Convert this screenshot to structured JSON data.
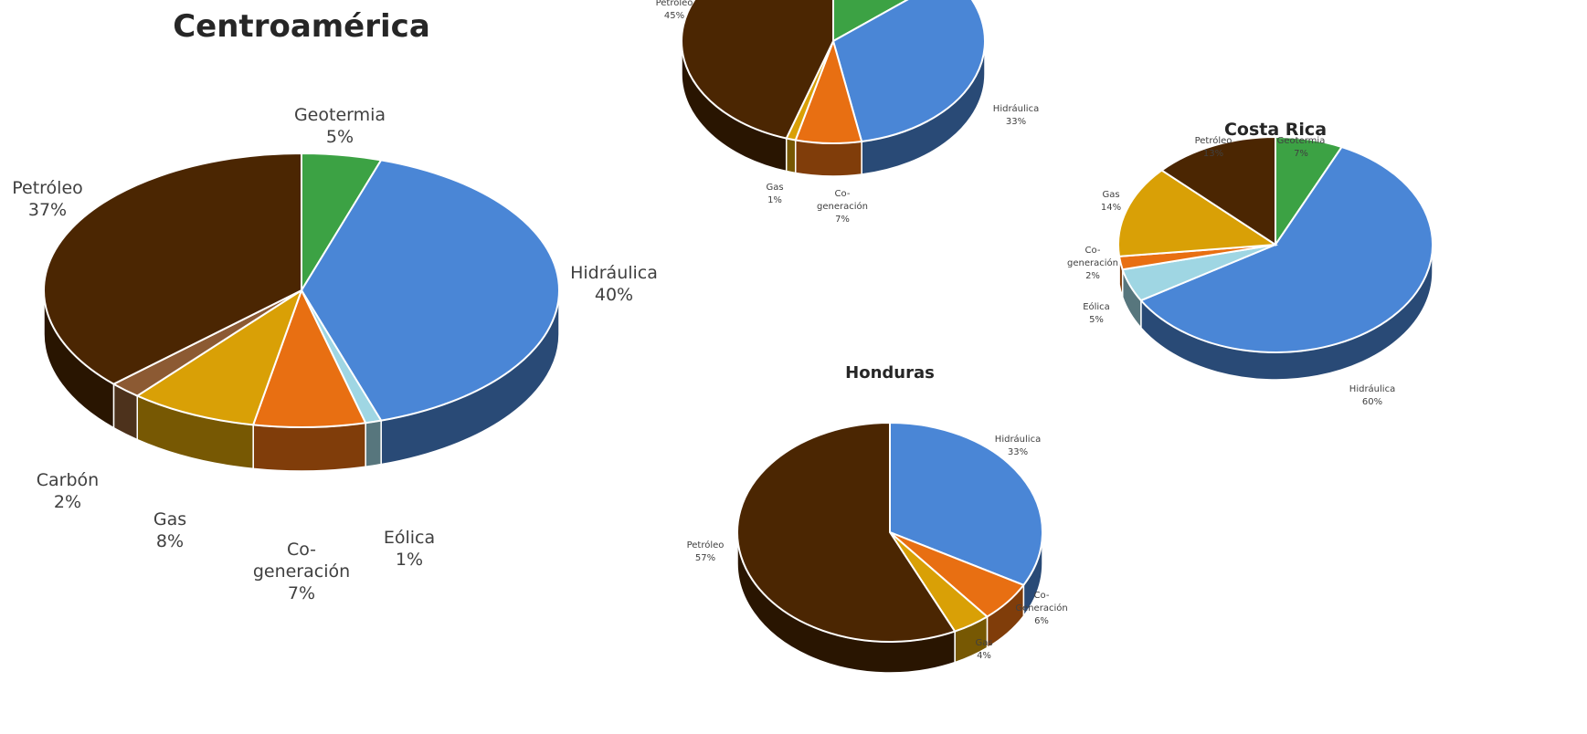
{
  "colors": {
    "Geotermia": "#3ca244",
    "Hidráulica": "#4a86d6",
    "Eólica": "#9fd6e3",
    "Co-generación": "#e86f12",
    "Gas": "#d9a006",
    "Carbón": "#8c5a33",
    "Petróleo": "#4b2602"
  },
  "chart_data": [
    {
      "type": "pie",
      "title": "Centroamérica",
      "slices": [
        {
          "label": "Geotermia",
          "value": 5,
          "text": [
            "Geotermia",
            "5%"
          ]
        },
        {
          "label": "Hidráulica",
          "value": 40,
          "text": [
            "Hidráulica",
            "40%"
          ]
        },
        {
          "label": "Eólica",
          "value": 1,
          "text": [
            "Eólica",
            "1%"
          ]
        },
        {
          "label": "Co-generación",
          "value": 7,
          "text": [
            "Co-",
            "generación",
            "7%"
          ]
        },
        {
          "label": "Gas",
          "value": 8,
          "text": [
            "Gas",
            "8%"
          ]
        },
        {
          "label": "Carbón",
          "value": 2,
          "text": [
            "Carbón",
            "2%"
          ]
        },
        {
          "label": "Petróleo",
          "value": 37,
          "text": [
            "Petróleo",
            "37%"
          ]
        }
      ]
    },
    {
      "type": "pie",
      "title": "",
      "slices": [
        {
          "label": "Geotermia",
          "value": 14,
          "text": []
        },
        {
          "label": "Hidráulica",
          "value": 33,
          "text": [
            "Hidráulica",
            "33%"
          ]
        },
        {
          "label": "Co-generación",
          "value": 7,
          "text": [
            "Co-",
            "generación",
            "7%"
          ]
        },
        {
          "label": "Gas",
          "value": 1,
          "text": [
            "Gas",
            "1%"
          ]
        },
        {
          "label": "Petróleo",
          "value": 45,
          "text": [
            "Petróleo",
            "45%"
          ]
        }
      ]
    },
    {
      "type": "pie",
      "title": "Costa Rica",
      "slices": [
        {
          "label": "Geotermia",
          "value": 7,
          "text": [
            "Geotermia",
            "7%"
          ]
        },
        {
          "label": "Hidráulica",
          "value": 60,
          "text": [
            "Hidráulica",
            "60%"
          ]
        },
        {
          "label": "Eólica",
          "value": 5,
          "text": [
            "Eólica",
            "5%"
          ]
        },
        {
          "label": "Co-generación",
          "value": 2,
          "text": [
            "Co-",
            "generación",
            "2%"
          ]
        },
        {
          "label": "Gas",
          "value": 14,
          "text": [
            "Gas",
            "14%"
          ]
        },
        {
          "label": "Petróleo",
          "value": 13,
          "text": [
            "Petróleo",
            "13%"
          ]
        }
      ]
    },
    {
      "type": "pie",
      "title": "Honduras",
      "slices": [
        {
          "label": "Hidráulica",
          "value": 33,
          "text": [
            "Hidráulica",
            "33%"
          ]
        },
        {
          "label": "Co-generación",
          "value": 6,
          "text": [
            "Co-",
            "Generación",
            "6%"
          ]
        },
        {
          "label": "Gas",
          "value": 4,
          "text": [
            "Gas",
            "4%"
          ]
        },
        {
          "label": "Petróleo",
          "value": 57,
          "text": [
            "Petróleo",
            "57%"
          ]
        }
      ]
    }
  ]
}
